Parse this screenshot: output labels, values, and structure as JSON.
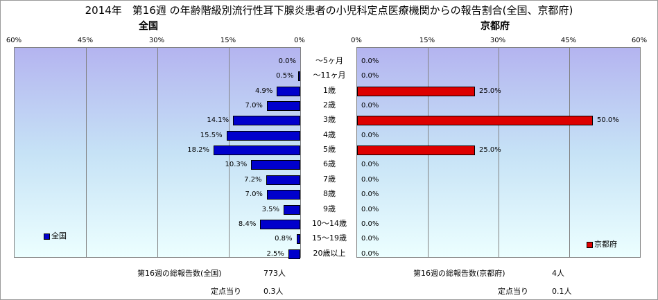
{
  "title": "2014年　第16週 の年齢階級別流行性耳下腺炎患者の小児科定点医療機関からの報告割合(全国、京都府)",
  "categories": [
    "～5ヶ月",
    "～11ヶ月",
    "1歳",
    "2歳",
    "3歳",
    "4歳",
    "5歳",
    "6歳",
    "7歳",
    "8歳",
    "9歳",
    "10～14歳",
    "15～19歳",
    "20歳以上"
  ],
  "colors": {
    "national": "#0000cc",
    "kyoto": "#dd0000"
  },
  "chart_data": [
    {
      "type": "bar",
      "title": "全国",
      "orientation": "horizontal",
      "direction": "right-to-left",
      "categories": [
        "～5ヶ月",
        "～11ヶ月",
        "1歳",
        "2歳",
        "3歳",
        "4歳",
        "5歳",
        "6歳",
        "7歳",
        "8歳",
        "9歳",
        "10～14歳",
        "15～19歳",
        "20歳以上"
      ],
      "series": [
        {
          "name": "全国",
          "values": [
            0.0,
            0.5,
            4.9,
            7.0,
            14.1,
            15.5,
            18.2,
            10.3,
            7.2,
            7.0,
            3.5,
            8.4,
            0.8,
            2.5
          ]
        }
      ],
      "data_labels": [
        "0.0%",
        "0.5%",
        "4.9%",
        "7.0%",
        "14.1%",
        "15.5%",
        "18.2%",
        "10.3%",
        "7.2%",
        "7.0%",
        "3.5%",
        "8.4%",
        "0.8%",
        "2.5%"
      ],
      "xlim": [
        0,
        60
      ],
      "tick_labels": [
        "60%",
        "45%",
        "30%",
        "15%",
        "0%"
      ],
      "grid": true,
      "legend": "bottom-left"
    },
    {
      "type": "bar",
      "title": "京都府",
      "orientation": "horizontal",
      "direction": "left-to-right",
      "categories": [
        "～5ヶ月",
        "～11ヶ月",
        "1歳",
        "2歳",
        "3歳",
        "4歳",
        "5歳",
        "6歳",
        "7歳",
        "8歳",
        "9歳",
        "10～14歳",
        "15～19歳",
        "20歳以上"
      ],
      "series": [
        {
          "name": "京都府",
          "values": [
            0.0,
            0.0,
            25.0,
            0.0,
            50.0,
            0.0,
            25.0,
            0.0,
            0.0,
            0.0,
            0.0,
            0.0,
            0.0,
            0.0
          ]
        }
      ],
      "data_labels": [
        "0.0%",
        "0.0%",
        "25.0%",
        "0.0%",
        "50.0%",
        "0.0%",
        "25.0%",
        "0.0%",
        "0.0%",
        "0.0%",
        "0.0%",
        "0.0%",
        "0.0%",
        "0.0%"
      ],
      "xlim": [
        0,
        60
      ],
      "tick_labels": [
        "0%",
        "15%",
        "30%",
        "45%",
        "60%"
      ],
      "grid": true,
      "legend": "bottom-right"
    }
  ],
  "footer": {
    "national_total_label": "第16週の総報告数(全国)",
    "national_total_value": "773人",
    "national_per_label": "定点当り",
    "national_per_value": "0.3人",
    "kyoto_total_label": "第16週の総報告数(京都府)",
    "kyoto_total_value": "4人",
    "kyoto_per_label": "定点当り",
    "kyoto_per_value": "0.1人"
  }
}
